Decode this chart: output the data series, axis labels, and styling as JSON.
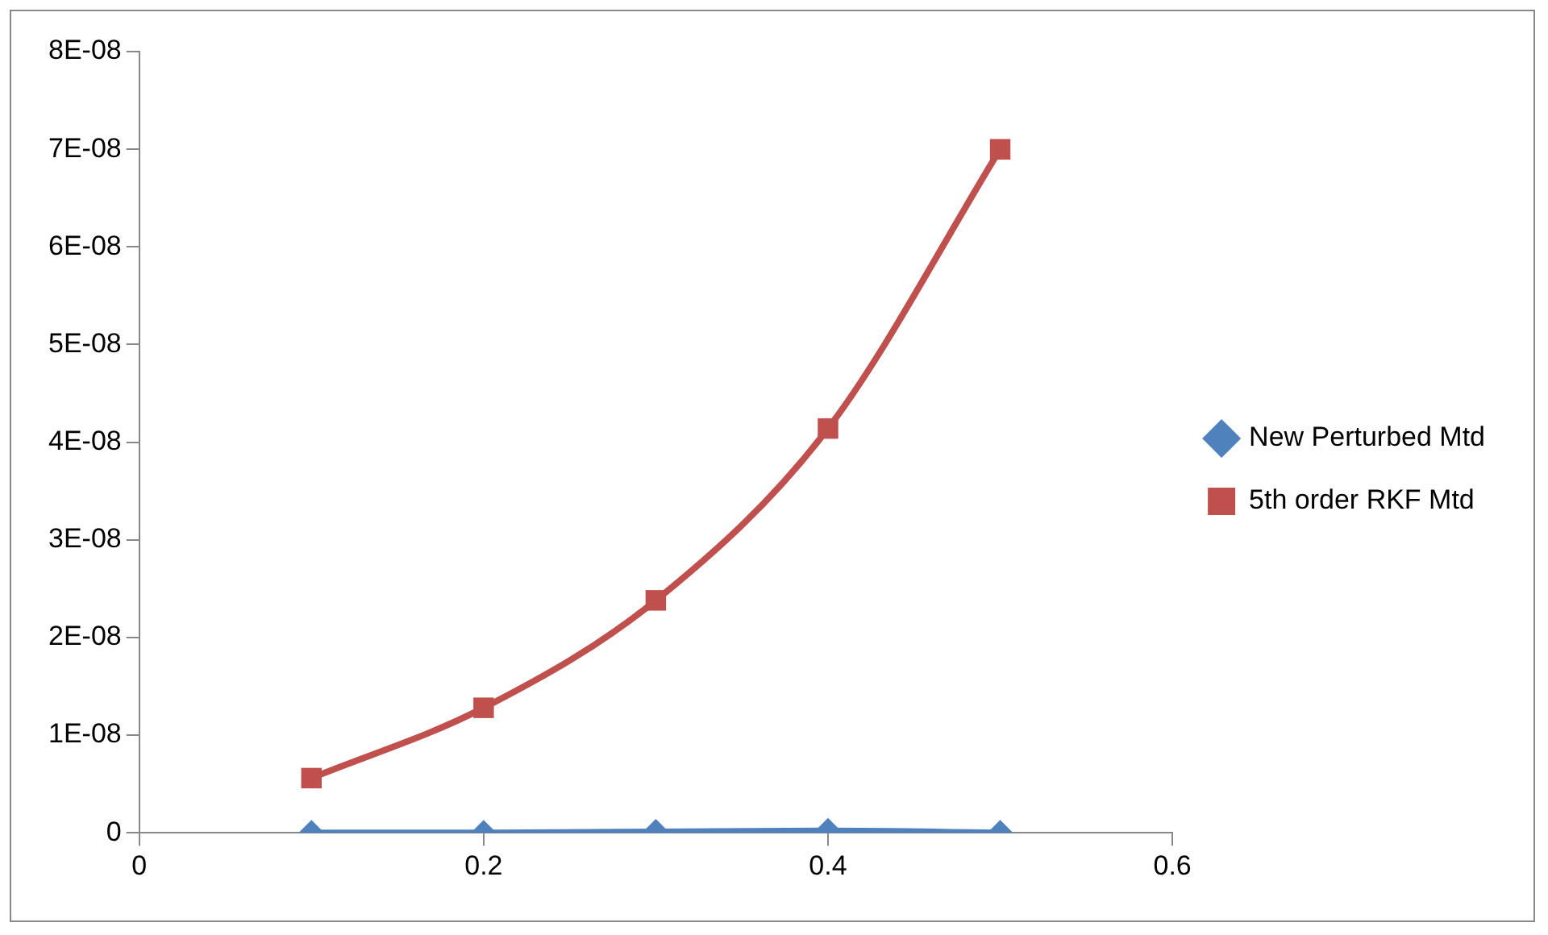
{
  "chart_data": {
    "type": "line",
    "x": [
      0.1,
      0.2,
      0.3,
      0.4,
      0.5
    ],
    "series": [
      {
        "name": "New Perturbed Mtd",
        "color": "#4f81bd",
        "marker": "diamond",
        "values": [
          0,
          0,
          1e-10,
          2e-10,
          0
        ]
      },
      {
        "name": "5th order RKF Mtd",
        "color": "#c0504d",
        "marker": "square",
        "values": [
          5.6e-09,
          1.28e-08,
          2.38e-08,
          4.14e-08,
          7e-08
        ]
      }
    ],
    "xlim": [
      0,
      0.6
    ],
    "xticks": [
      0,
      0.2,
      0.4,
      0.6
    ],
    "ylim": [
      0,
      8e-08
    ],
    "yticks": [
      0,
      {
        "value": 1e-08,
        "label": "1E-08"
      },
      {
        "value": 2e-08,
        "label": "2E-08"
      },
      {
        "value": 3e-08,
        "label": "3E-08"
      },
      {
        "value": 4e-08,
        "label": "4E-08"
      },
      {
        "value": 5e-08,
        "label": "5E-08"
      },
      {
        "value": 6e-08,
        "label": "6E-08"
      },
      {
        "value": 7e-08,
        "label": "7E-08"
      },
      {
        "value": 8e-08,
        "label": "8E-08"
      }
    ],
    "grid": false,
    "legend": "right"
  }
}
